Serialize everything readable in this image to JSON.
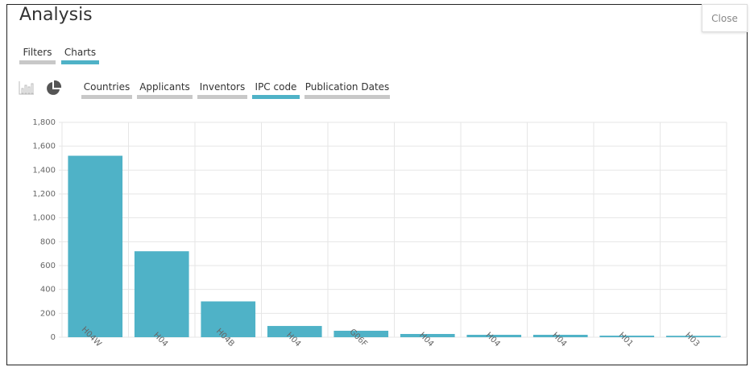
{
  "header": {
    "title": "Analysis",
    "close": "Close"
  },
  "tabs": [
    "Filters",
    "Charts"
  ],
  "chart_tabs": [
    "Countries",
    "Applicants",
    "Inventors",
    "IPC code",
    "Publication Dates"
  ],
  "chart_data": {
    "type": "bar",
    "categories": [
      "H04W",
      "H04",
      "H04B",
      "H04",
      "G06F",
      "H04",
      "H04",
      "H04",
      "H01",
      "H03"
    ],
    "values": [
      1520,
      720,
      300,
      94,
      54,
      27,
      20,
      20,
      13,
      12
    ],
    "color": "#4fb2c7",
    "ylim": [
      0,
      1800
    ],
    "yticks": [
      0,
      200,
      400,
      600,
      800,
      {
        "value": 1000,
        "label": "1,000"
      },
      {
        "value": 1200,
        "label": "1,200"
      },
      {
        "value": 1400,
        "label": "1,400"
      },
      {
        "value": 1600,
        "label": "1,600"
      },
      {
        "value": 1800,
        "label": "1,800"
      }
    ],
    "grid": true
  }
}
